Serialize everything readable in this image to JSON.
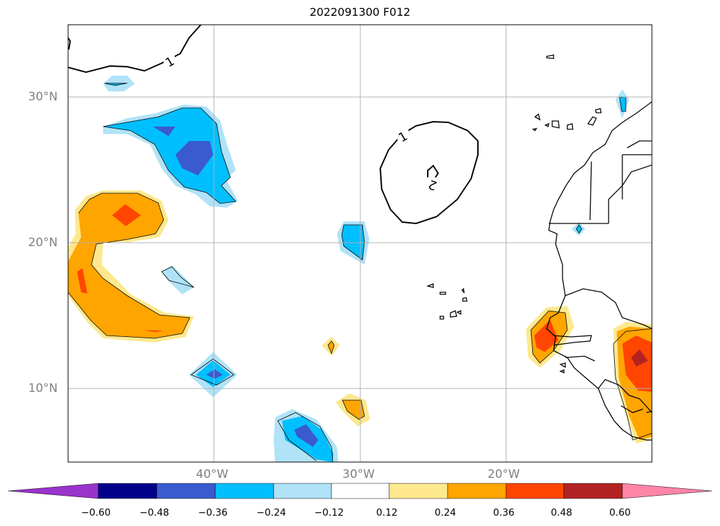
{
  "title": "2022091300 F012",
  "map": {
    "lat_labels": [
      "30°N",
      "20°N",
      "10°N"
    ],
    "lon_labels": [
      "40°W",
      "30°W",
      "20°W"
    ],
    "contour_labels": [
      "1",
      "1",
      "2"
    ]
  },
  "colorbar": {
    "tick_labels": [
      "−0.60",
      "−0.48",
      "−0.36",
      "−0.24",
      "−0.12",
      "0.12",
      "0.24",
      "0.36",
      "0.48",
      "0.60"
    ],
    "colors": [
      "#9933cc",
      "#00008b",
      "#3a5bcd",
      "#00bfff",
      "#b0e2f8",
      "#ffffff",
      "#fde88e",
      "#ffa500",
      "#ff4500",
      "#b22222",
      "#ff85a8"
    ]
  }
}
